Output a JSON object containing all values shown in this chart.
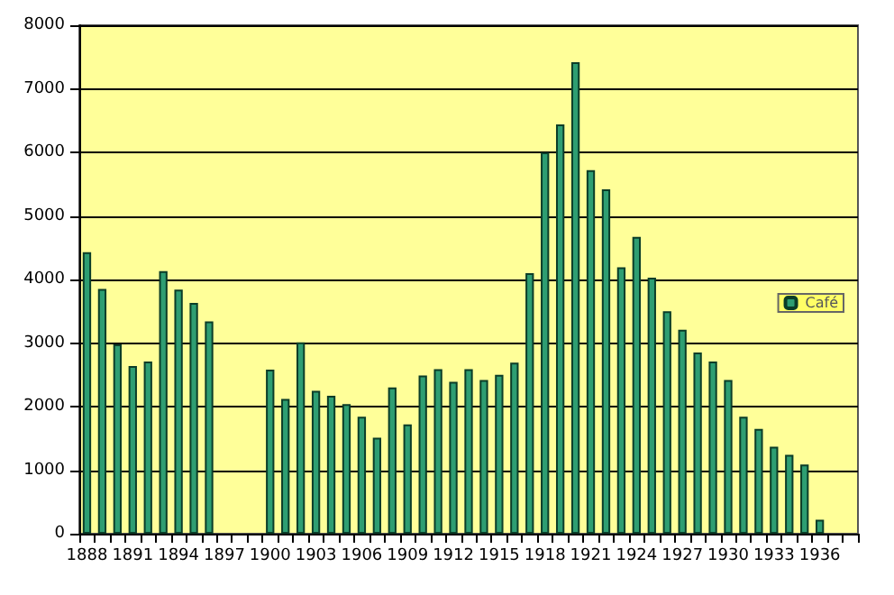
{
  "chart_data": {
    "type": "bar",
    "categories": [
      "1888",
      null,
      null,
      "1891",
      null,
      null,
      "1894",
      null,
      null,
      "1897",
      null,
      null,
      "1900",
      null,
      null,
      "1903",
      null,
      null,
      "1906",
      null,
      null,
      "1909",
      null,
      null,
      "1912",
      null,
      null,
      "1915",
      null,
      null,
      "1918",
      null,
      null,
      "1921",
      null,
      null,
      "1924",
      null,
      null,
      "1927",
      null,
      null,
      "1930",
      null,
      null,
      "1933",
      null,
      null,
      "1936",
      null,
      null
    ],
    "series": [
      {
        "name": "Café",
        "color": "#2e9e72",
        "values": [
          4430,
          3850,
          2980,
          2640,
          2710,
          4130,
          3840,
          3630,
          3340,
          null,
          null,
          null,
          2580,
          2120,
          3010,
          2250,
          2170,
          2040,
          1840,
          1510,
          2300,
          1720,
          2490,
          2590,
          2390,
          2590,
          2420,
          2500,
          2690,
          4100,
          6000,
          6440,
          7420,
          5720,
          5420,
          4190,
          4670,
          4030,
          3500,
          3210,
          2850,
          2710,
          2420,
          1840,
          1650,
          1370,
          1240,
          1090,
          220,
          null,
          null
        ]
      }
    ],
    "ylim": [
      0,
      8000
    ],
    "yticks": [
      0,
      1000,
      2000,
      3000,
      4000,
      5000,
      6000,
      7000,
      8000
    ],
    "grid": "y",
    "legend": "right"
  }
}
